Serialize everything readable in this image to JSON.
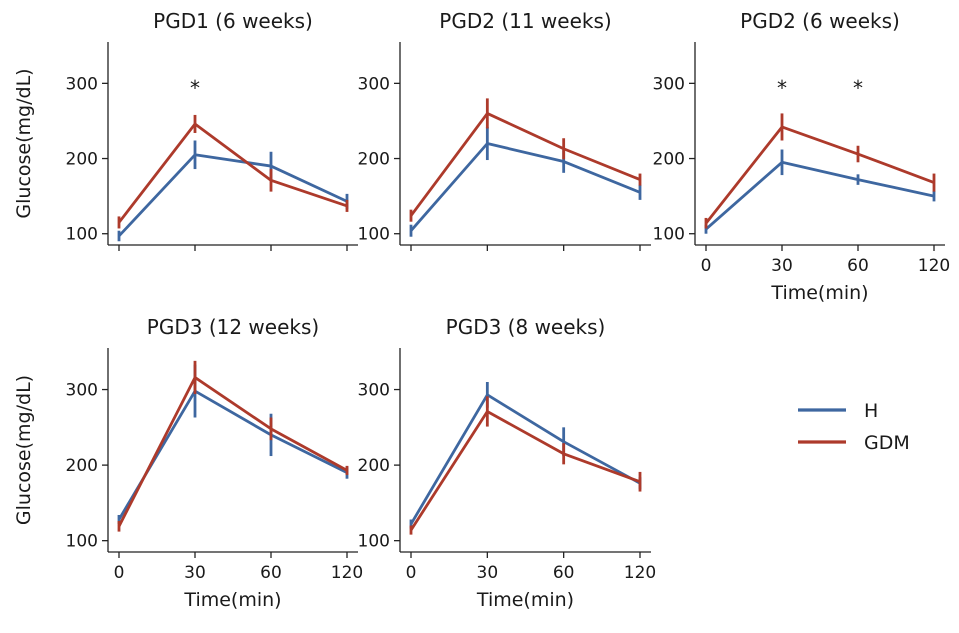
{
  "legend": {
    "entries": [
      {
        "label": "H",
        "color": "#3e67a0"
      },
      {
        "label": "GDM",
        "color": "#ad3a2b"
      }
    ]
  },
  "chart_data": [
    {
      "type": "line",
      "title": "PGD1 (6 weeks)",
      "xlabel": "",
      "ylabel": "Glucose(mg/dL)",
      "x": [
        0,
        30,
        60,
        120
      ],
      "x_tick_labels": [],
      "y_ticks": [
        100,
        200,
        300
      ],
      "ylim": [
        85,
        355
      ],
      "series": [
        {
          "name": "H",
          "color": "#3e67a0",
          "values": [
            97,
            205,
            190,
            143
          ],
          "err": [
            7,
            19,
            19,
            10
          ]
        },
        {
          "name": "GDM",
          "color": "#ad3a2b",
          "values": [
            115,
            246,
            171,
            137
          ],
          "err": [
            8,
            12,
            15,
            8
          ]
        }
      ],
      "annotations": [
        {
          "x": 30,
          "text": "*"
        }
      ]
    },
    {
      "type": "line",
      "title": "PGD2 (11 weeks)",
      "xlabel": "",
      "ylabel": "",
      "x": [
        0,
        30,
        60,
        120
      ],
      "x_tick_labels": [],
      "y_ticks": [
        100,
        200,
        300
      ],
      "ylim": [
        85,
        355
      ],
      "series": [
        {
          "name": "H",
          "color": "#3e67a0",
          "values": [
            104,
            220,
            196,
            155
          ],
          "err": [
            8,
            22,
            15,
            10
          ]
        },
        {
          "name": "GDM",
          "color": "#ad3a2b",
          "values": [
            124,
            260,
            213,
            172
          ],
          "err": [
            8,
            20,
            14,
            8
          ]
        }
      ],
      "annotations": []
    },
    {
      "type": "line",
      "title": "PGD2 (6 weeks)",
      "xlabel": "Time(min)",
      "ylabel": "",
      "x": [
        0,
        30,
        60,
        120
      ],
      "x_tick_labels": [
        "0",
        "30",
        "60",
        "120"
      ],
      "y_ticks": [
        100,
        200,
        300
      ],
      "ylim": [
        85,
        355
      ],
      "series": [
        {
          "name": "H",
          "color": "#3e67a0",
          "values": [
            106,
            195,
            172,
            150
          ],
          "err": [
            6,
            17,
            7,
            7
          ]
        },
        {
          "name": "GDM",
          "color": "#ad3a2b",
          "values": [
            114,
            242,
            206,
            168
          ],
          "err": [
            7,
            18,
            11,
            12
          ]
        }
      ],
      "annotations": [
        {
          "x": 30,
          "text": "*"
        },
        {
          "x": 60,
          "text": "*"
        }
      ]
    },
    {
      "type": "line",
      "title": "PGD3 (12 weeks)",
      "xlabel": "Time(min)",
      "ylabel": "Glucose(mg/dL)",
      "x": [
        0,
        30,
        60,
        120
      ],
      "x_tick_labels": [
        "0",
        "30",
        "60",
        "120"
      ],
      "y_ticks": [
        100,
        200,
        300
      ],
      "ylim": [
        85,
        355
      ],
      "series": [
        {
          "name": "H",
          "color": "#3e67a0",
          "values": [
            128,
            298,
            240,
            190
          ],
          "err": [
            6,
            35,
            28,
            8
          ]
        },
        {
          "name": "GDM",
          "color": "#ad3a2b",
          "values": [
            119,
            316,
            248,
            193
          ],
          "err": [
            7,
            22,
            15,
            6
          ]
        }
      ],
      "annotations": []
    },
    {
      "type": "line",
      "title": "PGD3 (8 weeks)",
      "xlabel": "Time(min)",
      "ylabel": "",
      "x": [
        0,
        30,
        60,
        120
      ],
      "x_tick_labels": [
        "0",
        "30",
        "60",
        "120"
      ],
      "y_ticks": [
        100,
        200,
        300
      ],
      "ylim": [
        85,
        355
      ],
      "series": [
        {
          "name": "H",
          "color": "#3e67a0",
          "values": [
            122,
            293,
            231,
            176
          ],
          "err": [
            6,
            17,
            19,
            8
          ]
        },
        {
          "name": "GDM",
          "color": "#ad3a2b",
          "values": [
            114,
            271,
            215,
            178
          ],
          "err": [
            6,
            20,
            14,
            13
          ]
        }
      ],
      "annotations": []
    }
  ]
}
